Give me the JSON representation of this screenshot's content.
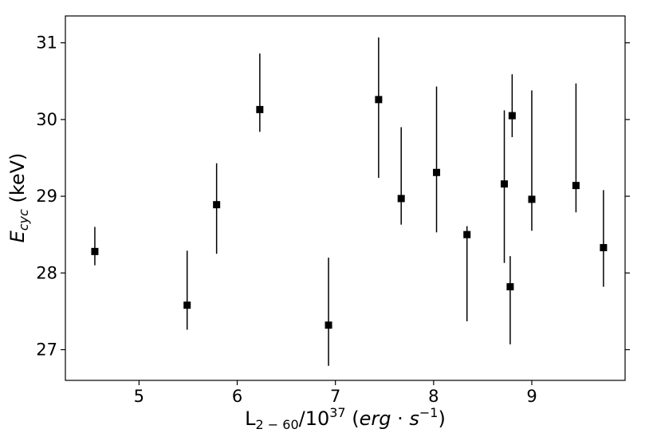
{
  "chart_data": {
    "type": "scatter",
    "xlabel": {
      "main": "L",
      "sub": "2 − 60",
      "mid": "/10",
      "sup": "37",
      "open": " (",
      "unit_a": "erg",
      "dot": " · ",
      "unit_b": "s",
      "unit_sup": "−1",
      "close": ")"
    },
    "ylabel": {
      "main": "E",
      "sub": "cyc",
      "tail": " (keV)"
    },
    "xlim": [
      4.25,
      9.95
    ],
    "ylim": [
      26.6,
      31.35
    ],
    "x_ticks": [
      5,
      6,
      7,
      8,
      9
    ],
    "y_ticks": [
      27,
      28,
      29,
      30,
      31
    ],
    "grid": false,
    "marker": "square",
    "color": "#000000",
    "points": [
      {
        "x": 4.55,
        "y": 28.28,
        "ylo": 28.1,
        "yhi": 28.6
      },
      {
        "x": 5.49,
        "y": 27.58,
        "ylo": 27.26,
        "yhi": 28.29
      },
      {
        "x": 5.79,
        "y": 28.89,
        "ylo": 28.25,
        "yhi": 29.43
      },
      {
        "x": 6.23,
        "y": 30.13,
        "ylo": 29.84,
        "yhi": 30.86
      },
      {
        "x": 6.93,
        "y": 27.32,
        "ylo": 26.79,
        "yhi": 28.2
      },
      {
        "x": 7.44,
        "y": 30.26,
        "ylo": 29.24,
        "yhi": 31.07
      },
      {
        "x": 7.67,
        "y": 28.97,
        "ylo": 28.63,
        "yhi": 29.9
      },
      {
        "x": 8.03,
        "y": 29.31,
        "ylo": 28.53,
        "yhi": 30.43
      },
      {
        "x": 8.34,
        "y": 28.5,
        "ylo": 27.37,
        "yhi": 28.61
      },
      {
        "x": 8.72,
        "y": 29.16,
        "ylo": 28.13,
        "yhi": 30.12
      },
      {
        "x": 8.78,
        "y": 27.82,
        "ylo": 27.07,
        "yhi": 28.22
      },
      {
        "x": 8.8,
        "y": 30.05,
        "ylo": 29.77,
        "yhi": 30.59
      },
      {
        "x": 9.0,
        "y": 28.96,
        "ylo": 28.55,
        "yhi": 30.38
      },
      {
        "x": 9.45,
        "y": 29.14,
        "ylo": 28.79,
        "yhi": 30.47
      },
      {
        "x": 9.73,
        "y": 28.33,
        "ylo": 27.82,
        "yhi": 29.08
      }
    ]
  }
}
